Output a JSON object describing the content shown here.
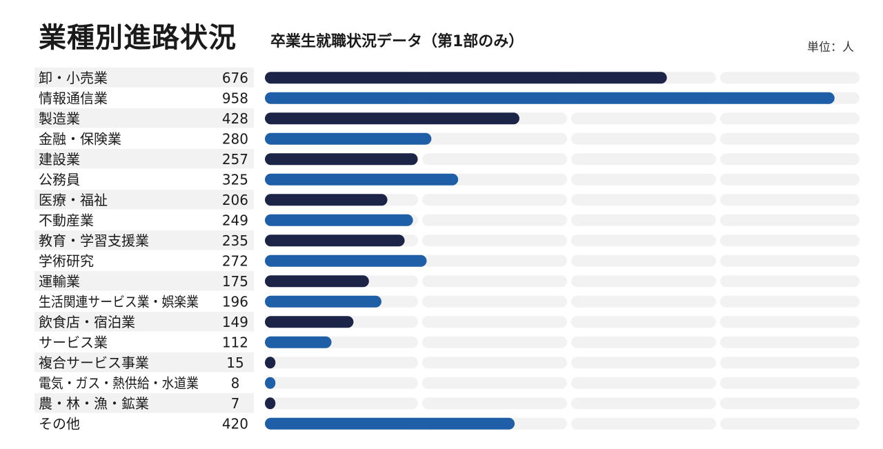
{
  "chart_data": {
    "type": "bar",
    "orientation": "horizontal",
    "title": "業種別進路状況",
    "subtitle": "卒業生就職状況データ（第1部のみ）",
    "unit_label": "単位：人",
    "categories": [
      "卸・小売業",
      "情報通信業",
      "製造業",
      "金融・保険業",
      "建設業",
      "公務員",
      "医療・福祉",
      "不動産業",
      "教育・学習支援業",
      "学術研究",
      "運輸業",
      "生活関連サービス業・娯楽業",
      "飲食店・宿泊業",
      "サービス業",
      "複合サービス事業",
      "電気・ガス・熱供給・水道業",
      "農・林・漁・鉱業",
      "その他"
    ],
    "values": [
      676,
      958,
      428,
      280,
      257,
      325,
      206,
      249,
      235,
      272,
      175,
      196,
      149,
      112,
      15,
      8,
      7,
      420
    ],
    "xlim": [
      0,
      1000
    ],
    "grid": false,
    "colors": {
      "dark": "#1c2447",
      "blue": "#1f5fa8",
      "track": "#f2f2f2",
      "label_bg": "#f2f2f2"
    }
  }
}
